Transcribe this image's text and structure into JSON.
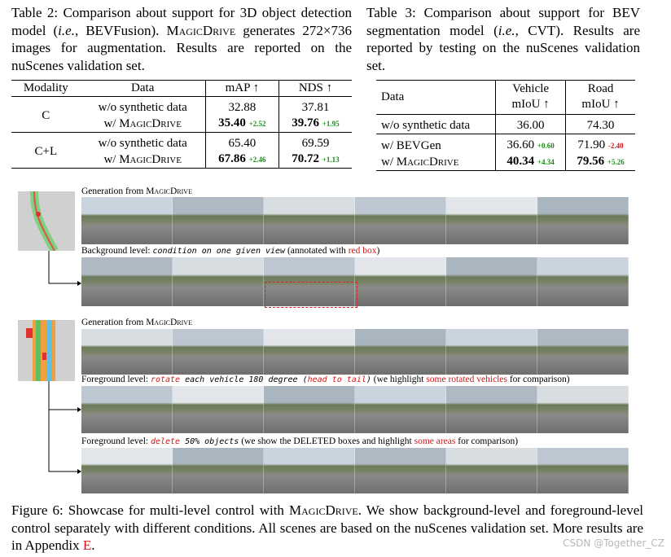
{
  "table2": {
    "caption": [
      "Table 2: Comparison about support for 3D object detection model (",
      "i.e.",
      ", BEVFusion). ",
      "MagicDrive",
      " generates 272×736 images for augmentation. Results are reported on the nuScenes validation set."
    ],
    "header": [
      "Modality",
      "Data",
      "mAP ↑",
      "NDS ↑"
    ],
    "groups": [
      {
        "modality": "C",
        "rows": [
          {
            "data": [
              "w/o synthetic data"
            ],
            "map": "32.88",
            "nds": "37.81"
          },
          {
            "data": [
              "w/ ",
              "MagicDrive"
            ],
            "map": "35.40",
            "map_delta": "+2.52",
            "nds": "39.76",
            "nds_delta": "+1.95",
            "bold": true
          }
        ]
      },
      {
        "modality": "C+L",
        "rows": [
          {
            "data": [
              "w/o synthetic data"
            ],
            "map": "65.40",
            "nds": "69.59"
          },
          {
            "data": [
              "w/ ",
              "MagicDrive"
            ],
            "map": "67.86",
            "map_delta": "+2.46",
            "nds": "70.72",
            "nds_delta": "+1.13",
            "bold": true
          }
        ]
      }
    ]
  },
  "table3": {
    "caption": [
      "Table 3: Comparison about support for BEV segmentation model (",
      "i.e.",
      ", CVT). Results are reported by testing on the nuScenes validation set."
    ],
    "header": [
      "Data",
      [
        "Vehicle",
        "mIoU ↑"
      ],
      [
        "Road",
        "mIoU ↑"
      ]
    ],
    "groups": [
      {
        "rows": [
          {
            "data": [
              "w/o synthetic data"
            ],
            "vehicle": "36.00",
            "road": "74.30"
          }
        ]
      },
      {
        "rows": [
          {
            "data": [
              "w/ BEVGen"
            ],
            "vehicle": "36.60",
            "vehicle_delta": "+0.60",
            "road": "71.90",
            "road_delta": "-2.40"
          },
          {
            "data": [
              "w/ ",
              "MagicDrive"
            ],
            "vehicle": "40.34",
            "vehicle_delta": "+4.34",
            "road": "79.56",
            "road_delta": "+5.26",
            "bold": true
          }
        ]
      }
    ]
  },
  "figure": {
    "panels": [
      {
        "label": [
          "Generation from ",
          "MagicDrive"
        ]
      },
      {
        "label": [
          "Background level: ",
          "condition on one given view",
          " (annotated with ",
          "red box",
          ")"
        ]
      },
      {
        "label": [
          "Generation from ",
          "MagicDrive"
        ]
      },
      {
        "label": [
          "Foreground level: ",
          "rotate",
          " each vehicle 180 degree (",
          "head to tail",
          ")",
          " (we highlight ",
          "some rotated vehicles",
          " for comparison)"
        ]
      },
      {
        "label": [
          "Foreground level: ",
          "delete",
          " 50% objects",
          " (we show the DELETED boxes and highlight ",
          "some areas",
          " for comparison)"
        ]
      }
    ],
    "caption": [
      "Figure 6: Showcase for multi-level control with ",
      "MagicDrive",
      ". We show background-level and foreground-level control separately with different conditions. All scenes are based on the nuScenes validation set. More results are in Appendix ",
      "E",
      "."
    ]
  },
  "watermark": "CSDN @Together_CZ"
}
